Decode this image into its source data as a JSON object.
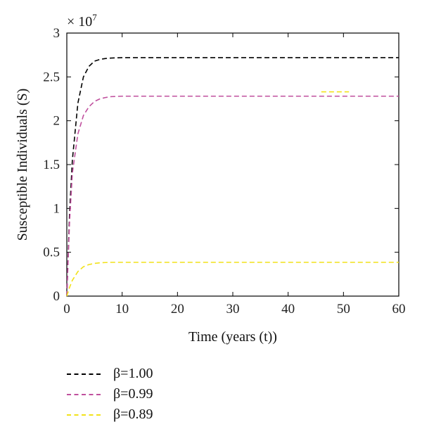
{
  "chart_data": {
    "type": "line",
    "title": "",
    "xlabel": "Time (years (t))",
    "ylabel": "Susceptible Individuals (S)",
    "y_multiplier_label": "× 10",
    "y_multiplier_exp": "7",
    "xlim": [
      0,
      60
    ],
    "ylim": [
      0,
      3
    ],
    "x_ticks": [
      "0",
      "10",
      "20",
      "30",
      "40",
      "50",
      "60"
    ],
    "y_ticks": [
      "0",
      "0.5",
      "1",
      "1.5",
      "2",
      "2.5",
      "3"
    ],
    "grid": false,
    "legend_position": "below",
    "series": [
      {
        "name": "β=1.00",
        "color": "#000000",
        "x": [
          0,
          0.5,
          1,
          2,
          3,
          4,
          5,
          6,
          7,
          8,
          10,
          15,
          20,
          30,
          40,
          50,
          60
        ],
        "y": [
          0,
          0.95,
          1.55,
          2.2,
          2.5,
          2.62,
          2.68,
          2.7,
          2.71,
          2.715,
          2.72,
          2.72,
          2.72,
          2.72,
          2.72,
          2.72,
          2.72
        ]
      },
      {
        "name": "β=0.99",
        "color": "#c0509e",
        "x": [
          0,
          0.5,
          1,
          2,
          3,
          4,
          5,
          6,
          7,
          8,
          10,
          15,
          20,
          30,
          40,
          50,
          60
        ],
        "y": [
          0,
          0.85,
          1.4,
          1.85,
          2.06,
          2.16,
          2.22,
          2.25,
          2.265,
          2.275,
          2.28,
          2.28,
          2.28,
          2.28,
          2.28,
          2.28,
          2.28
        ]
      },
      {
        "name": "β=0.89",
        "color": "#f2e21a",
        "x": [
          0,
          0.5,
          1,
          2,
          3,
          4,
          5,
          6,
          7,
          8,
          10,
          15,
          20,
          30,
          40,
          50,
          60
        ],
        "y": [
          0,
          0.1,
          0.18,
          0.28,
          0.335,
          0.36,
          0.373,
          0.38,
          0.383,
          0.385,
          0.385,
          0.385,
          0.385,
          0.385,
          0.385,
          0.385,
          0.385
        ]
      }
    ],
    "annotations": [
      {
        "type": "dash-mark",
        "color": "#f2e21a",
        "x": [
          46,
          51
        ],
        "y": 2.33
      }
    ]
  }
}
